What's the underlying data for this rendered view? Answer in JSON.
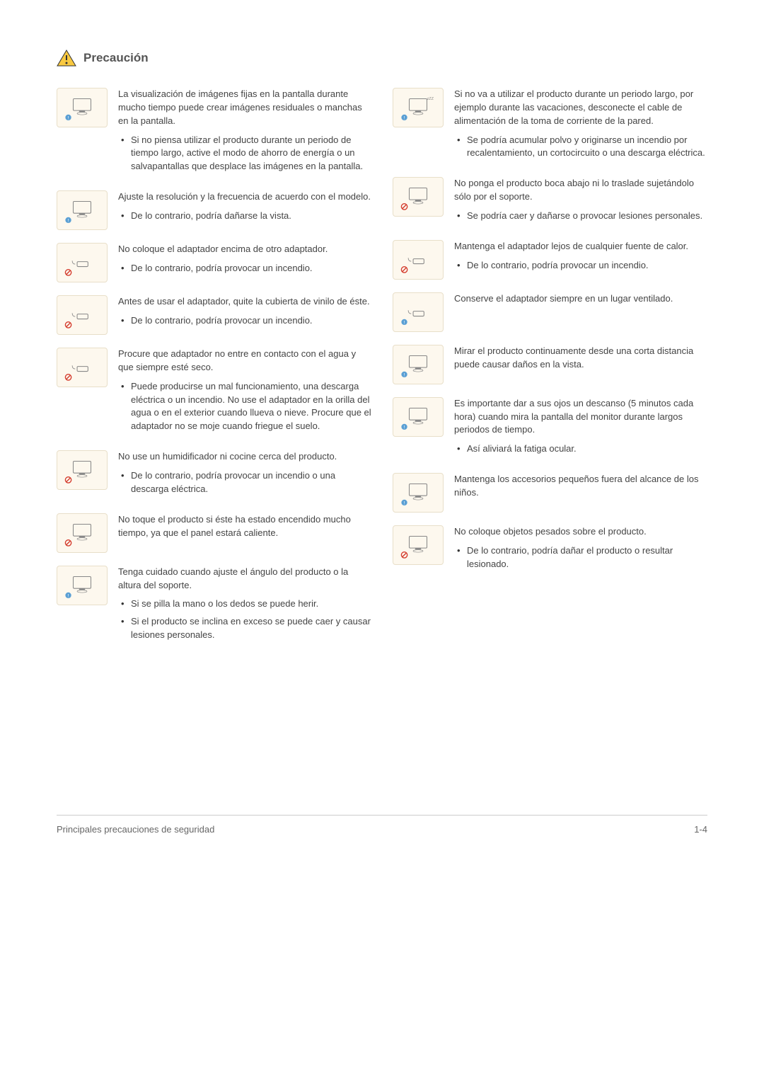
{
  "header": {
    "title": "Precaución"
  },
  "colors": {
    "page_bg": "#ffffff",
    "text": "#333333",
    "icon_bg": "#fdf8ee",
    "icon_border": "#e8dfc9",
    "footer_border": "#cccccc",
    "warn_yellow": "#f9c940",
    "warn_red": "#d43c2e",
    "info_blue": "#5a9fd4",
    "prohibit_red": "#d43c2e"
  },
  "left": [
    {
      "icon": "monitor-burn-in",
      "badge": "info",
      "main": "La visualización de imágenes fijas en la pantalla durante mucho tiempo puede crear imágenes residuales o manchas en la pantalla.",
      "bullets": [
        "Si no piensa utilizar el producto durante un periodo de tiempo largo, active el modo de ahorro de energía o un salvapantallas que desplace las imágenes en la pantalla."
      ]
    },
    {
      "icon": "monitor-resolution",
      "badge": "info",
      "main": "Ajuste la resolución y la frecuencia de acuerdo con el modelo.",
      "bullets": [
        "De lo contrario, podría dañarse la vista."
      ]
    },
    {
      "icon": "adapter-stack",
      "badge": "prohibit",
      "main": "No coloque el adaptador encima de otro adaptador.",
      "bullets": [
        "De lo contrario, podría provocar un incendio."
      ]
    },
    {
      "icon": "adapter-vinyl",
      "badge": "prohibit",
      "main": "Antes de usar el adaptador, quite la cubierta de vinilo de éste.",
      "bullets": [
        "De lo contrario, podría provocar un incendio."
      ]
    },
    {
      "icon": "adapter-water",
      "badge": "prohibit",
      "main": "Procure que adaptador no entre en contacto con el agua y que siempre esté seco.",
      "bullets": [
        "Puede producirse un mal funcionamiento, una descarga eléctrica o un incendio. No use el adaptador en la orilla del agua o en el exterior cuando llueva o nieve. Procure que el adaptador no se moje cuando friegue el suelo."
      ]
    },
    {
      "icon": "humidifier",
      "badge": "prohibit",
      "main": "No use un humidificador ni cocine cerca del producto.",
      "bullets": [
        "De lo contrario, podría provocar un incendio o una descarga eléctrica."
      ]
    },
    {
      "icon": "hot-panel",
      "badge": "prohibit",
      "main": "No toque el producto si éste ha estado encendido mucho tiempo, ya que el panel estará caliente.",
      "bullets": []
    },
    {
      "icon": "adjust-angle",
      "badge": "info",
      "main": "Tenga cuidado cuando ajuste el ángulo del producto o la altura del soporte.",
      "bullets": [
        "Si se pilla la mano o los dedos se puede herir.",
        "Si el producto se inclina en exceso se puede caer y causar lesiones personales."
      ]
    }
  ],
  "right": [
    {
      "icon": "sleep-unplug",
      "badge": "info",
      "main": "Si no va a utilizar el producto durante un periodo largo, por ejemplo durante las vacaciones, desconecte el cable de alimentación de la toma de corriente de la pared.",
      "bullets": [
        "Se podría acumular polvo y originarse un incendio por recalentamiento, un cortocircuito o una descarga eléctrica."
      ]
    },
    {
      "icon": "upside-down",
      "badge": "prohibit",
      "main": "No ponga el producto boca abajo ni lo traslade sujetándolo sólo por el soporte.",
      "bullets": [
        "Se podría caer y dañarse o provocar lesiones personales."
      ]
    },
    {
      "icon": "adapter-heat",
      "badge": "prohibit",
      "main": "Mantenga el adaptador lejos de cualquier fuente de calor.",
      "bullets": [
        "De lo contrario, podría provocar un incendio."
      ]
    },
    {
      "icon": "adapter-ventilated",
      "badge": "info",
      "main": "Conserve el adaptador siempre en un lugar ventilado.",
      "bullets": []
    },
    {
      "icon": "eye-distance",
      "badge": "info",
      "main": "Mirar el producto continuamente desde una corta distancia puede causar daños en la vista.",
      "bullets": []
    },
    {
      "icon": "eye-rest",
      "badge": "info",
      "main": "Es importante dar a sus ojos un descanso (5 minutos cada hora) cuando mira la pantalla del monitor durante largos periodos de tiempo.",
      "bullets": [
        "Así aliviará la fatiga ocular."
      ]
    },
    {
      "icon": "small-parts",
      "badge": "info",
      "main": "Mantenga los accesorios pequeños fuera del alcance de los niños.",
      "bullets": []
    },
    {
      "icon": "heavy-object",
      "badge": "prohibit",
      "main": "No coloque objetos pesados sobre el producto.",
      "bullets": [
        "De lo contrario, podría dañar el producto o resultar lesionado."
      ]
    }
  ],
  "footer": {
    "left": "Principales precauciones de seguridad",
    "right": "1-4"
  }
}
